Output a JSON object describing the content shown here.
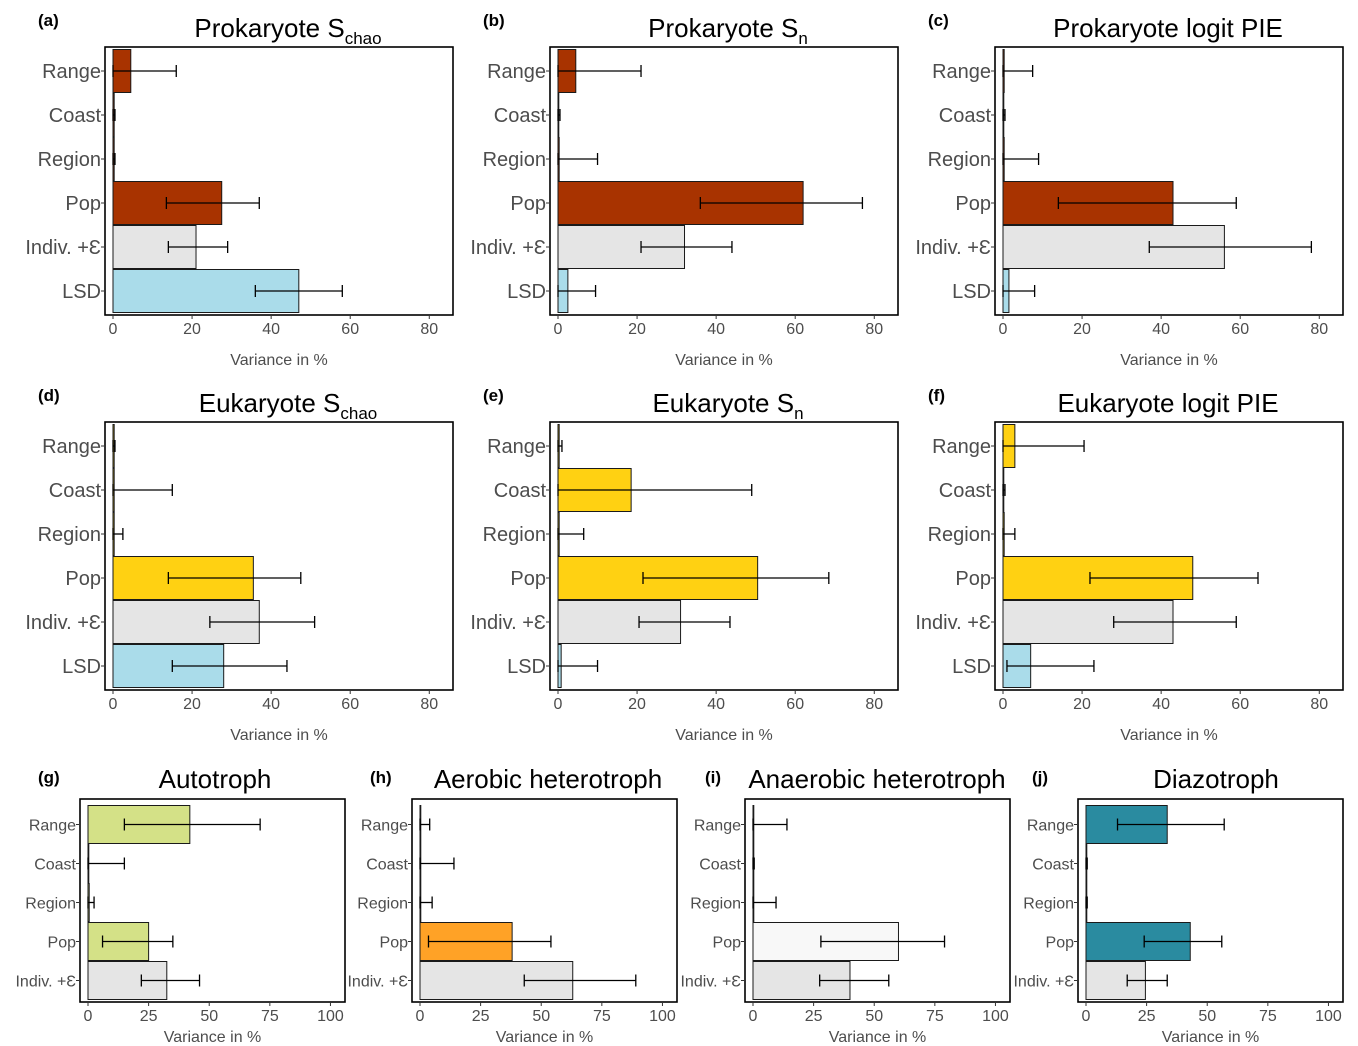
{
  "common": {
    "xlabel": "Variance in %",
    "colors": {
      "prokaryote": "#a83300",
      "eukaryote": "#ffd112",
      "residual": "#e5e5e5",
      "lsd": "#aadcea",
      "autotroph": "#d4e187",
      "aerobic": "#ffa226",
      "anaerobic": "#f8f8f8",
      "diazotroph": "#2a8ba0"
    }
  },
  "chart_data": [
    {
      "id": "a",
      "label": "(a)",
      "title": "Prokaryote S",
      "title_sub": "chao",
      "type": "bar",
      "orientation": "horizontal",
      "categories": [
        "Range",
        "Coast",
        "Region",
        "Pop",
        "Indiv. +Ɛ",
        "LSD"
      ],
      "values": [
        4.5,
        0.3,
        0.3,
        27.5,
        21,
        47
      ],
      "error_low": [
        0,
        0,
        0,
        13.5,
        14,
        36
      ],
      "error_high": [
        16,
        0.5,
        0.5,
        37,
        29,
        58
      ],
      "bar_colors": [
        "#a83300",
        "#a83300",
        "#a83300",
        "#a83300",
        "#e5e5e5",
        "#aadcea"
      ],
      "xlim": [
        0,
        86
      ],
      "ticks": [
        0,
        20,
        40,
        60,
        80
      ],
      "xlabel": "Variance in %"
    },
    {
      "id": "b",
      "label": "(b)",
      "title": "Prokaryote S",
      "title_sub": "n",
      "type": "bar",
      "orientation": "horizontal",
      "categories": [
        "Range",
        "Coast",
        "Region",
        "Pop",
        "Indiv. +Ɛ",
        "LSD"
      ],
      "values": [
        4.5,
        0.2,
        0.3,
        62,
        32,
        2.5
      ],
      "error_low": [
        0,
        0,
        0,
        36,
        21,
        0
      ],
      "error_high": [
        21,
        0.5,
        10,
        77,
        44,
        9.5
      ],
      "bar_colors": [
        "#a83300",
        "#a83300",
        "#a83300",
        "#a83300",
        "#e5e5e5",
        "#aadcea"
      ],
      "xlim": [
        0,
        86
      ],
      "ticks": [
        0,
        20,
        40,
        60,
        80
      ],
      "xlabel": "Variance in %"
    },
    {
      "id": "c",
      "label": "(c)",
      "title": "Prokaryote logit PIE",
      "title_sub": "",
      "type": "bar",
      "orientation": "horizontal",
      "categories": [
        "Range",
        "Coast",
        "Region",
        "Pop",
        "Indiv. +Ɛ",
        "LSD"
      ],
      "values": [
        0.3,
        0.2,
        0.3,
        43,
        56,
        1.5
      ],
      "error_low": [
        0,
        0,
        0,
        14,
        37,
        0
      ],
      "error_high": [
        7.5,
        0.5,
        9,
        59,
        78,
        8
      ],
      "bar_colors": [
        "#a83300",
        "#a83300",
        "#a83300",
        "#a83300",
        "#e5e5e5",
        "#aadcea"
      ],
      "xlim": [
        0,
        86
      ],
      "ticks": [
        0,
        20,
        40,
        60,
        80
      ],
      "xlabel": "Variance in %"
    },
    {
      "id": "d",
      "label": "(d)",
      "title": "Eukaryote S",
      "title_sub": "chao",
      "type": "bar",
      "orientation": "horizontal",
      "categories": [
        "Range",
        "Coast",
        "Region",
        "Pop",
        "Indiv. +Ɛ",
        "LSD"
      ],
      "values": [
        0.3,
        0.3,
        0.3,
        35.5,
        37,
        28
      ],
      "error_low": [
        0,
        0,
        0,
        14,
        24.5,
        15
      ],
      "error_high": [
        0.5,
        15,
        2.5,
        47.5,
        51,
        44
      ],
      "bar_colors": [
        "#ffd112",
        "#ffd112",
        "#ffd112",
        "#ffd112",
        "#e5e5e5",
        "#aadcea"
      ],
      "xlim": [
        0,
        86
      ],
      "ticks": [
        0,
        20,
        40,
        60,
        80
      ],
      "xlabel": "Variance in %"
    },
    {
      "id": "e",
      "label": "(e)",
      "title": "Eukaryote S",
      "title_sub": "n",
      "type": "bar",
      "orientation": "horizontal",
      "categories": [
        "Range",
        "Coast",
        "Region",
        "Pop",
        "Indiv. +Ɛ",
        "LSD"
      ],
      "values": [
        0.3,
        18.5,
        0.3,
        50.5,
        31,
        0.8
      ],
      "error_low": [
        0,
        0,
        0,
        21.5,
        20.5,
        0
      ],
      "error_high": [
        1,
        49,
        6.5,
        68.5,
        43.5,
        10
      ],
      "bar_colors": [
        "#ffd112",
        "#ffd112",
        "#ffd112",
        "#ffd112",
        "#e5e5e5",
        "#aadcea"
      ],
      "xlim": [
        0,
        86
      ],
      "ticks": [
        0,
        20,
        40,
        60,
        80
      ],
      "xlabel": "Variance in %"
    },
    {
      "id": "f",
      "label": "(f)",
      "title": "Eukaryote logit PIE",
      "title_sub": "",
      "type": "bar",
      "orientation": "horizontal",
      "categories": [
        "Range",
        "Coast",
        "Region",
        "Pop",
        "Indiv. +Ɛ",
        "LSD"
      ],
      "values": [
        3,
        0.2,
        0.3,
        48,
        43,
        7
      ],
      "error_low": [
        0,
        0,
        0,
        22,
        28,
        1
      ],
      "error_high": [
        20.5,
        0.5,
        3,
        64.5,
        59,
        23
      ],
      "bar_colors": [
        "#ffd112",
        "#ffd112",
        "#ffd112",
        "#ffd112",
        "#e5e5e5",
        "#aadcea"
      ],
      "xlim": [
        0,
        86
      ],
      "ticks": [
        0,
        20,
        40,
        60,
        80
      ],
      "xlabel": "Variance in %"
    },
    {
      "id": "g",
      "label": "(g)",
      "title": "Autotroph",
      "title_sub": "",
      "type": "bar",
      "orientation": "horizontal",
      "categories": [
        "Range",
        "Coast",
        "Region",
        "Pop",
        "Indiv. +Ɛ"
      ],
      "values": [
        42,
        0.2,
        0.5,
        25,
        32.5
      ],
      "error_low": [
        15,
        0,
        0,
        6,
        22
      ],
      "error_high": [
        71,
        15,
        2.5,
        35,
        46
      ],
      "bar_colors": [
        "#d4e187",
        "#d4e187",
        "#d4e187",
        "#d4e187",
        "#e5e5e5"
      ],
      "xlim": [
        0,
        106
      ],
      "ticks": [
        0,
        25,
        50,
        75,
        100
      ],
      "xlabel": "Variance in %"
    },
    {
      "id": "h",
      "label": "(h)",
      "title": "Aerobic heterotroph",
      "title_sub": "",
      "type": "bar",
      "orientation": "horizontal",
      "categories": [
        "Range",
        "Coast",
        "Region",
        "Pop",
        "Indiv. +Ɛ"
      ],
      "values": [
        0.2,
        0.2,
        0.2,
        38,
        63
      ],
      "error_low": [
        0,
        0,
        0,
        3.5,
        43
      ],
      "error_high": [
        4,
        14,
        5,
        54,
        89
      ],
      "bar_colors": [
        "#ffa226",
        "#ffa226",
        "#ffa226",
        "#ffa226",
        "#e5e5e5"
      ],
      "xlim": [
        0,
        106
      ],
      "ticks": [
        0,
        25,
        50,
        75,
        100
      ],
      "xlabel": "Variance in %"
    },
    {
      "id": "i",
      "label": "(i)",
      "title": "Anaerobic heterotroph",
      "title_sub": "",
      "type": "bar",
      "orientation": "horizontal",
      "categories": [
        "Range",
        "Coast",
        "Region",
        "Pop",
        "Indiv. +Ɛ"
      ],
      "values": [
        0.2,
        0.2,
        0.2,
        60,
        40
      ],
      "error_low": [
        0,
        0,
        0,
        28,
        27.5
      ],
      "error_high": [
        14,
        0.5,
        9.5,
        79,
        56
      ],
      "bar_colors": [
        "#f8f8f8",
        "#f8f8f8",
        "#f8f8f8",
        "#f8f8f8",
        "#e5e5e5"
      ],
      "xlim": [
        0,
        106
      ],
      "ticks": [
        0,
        25,
        50,
        75,
        100
      ],
      "xlabel": "Variance in %"
    },
    {
      "id": "j",
      "label": "(j)",
      "title": "Diazotroph",
      "title_sub": "",
      "type": "bar",
      "orientation": "horizontal",
      "categories": [
        "Range",
        "Coast",
        "Region",
        "Pop",
        "Indiv. +Ɛ"
      ],
      "values": [
        33.5,
        0.2,
        0.2,
        43,
        24.5
      ],
      "error_low": [
        13,
        0,
        0,
        24,
        17
      ],
      "error_high": [
        57,
        0.5,
        0.5,
        56,
        33.5
      ],
      "bar_colors": [
        "#2a8ba0",
        "#2a8ba0",
        "#2a8ba0",
        "#2a8ba0",
        "#e5e5e5"
      ],
      "xlim": [
        0,
        106
      ],
      "ticks": [
        0,
        25,
        50,
        75,
        100
      ],
      "xlabel": "Variance in %"
    }
  ]
}
